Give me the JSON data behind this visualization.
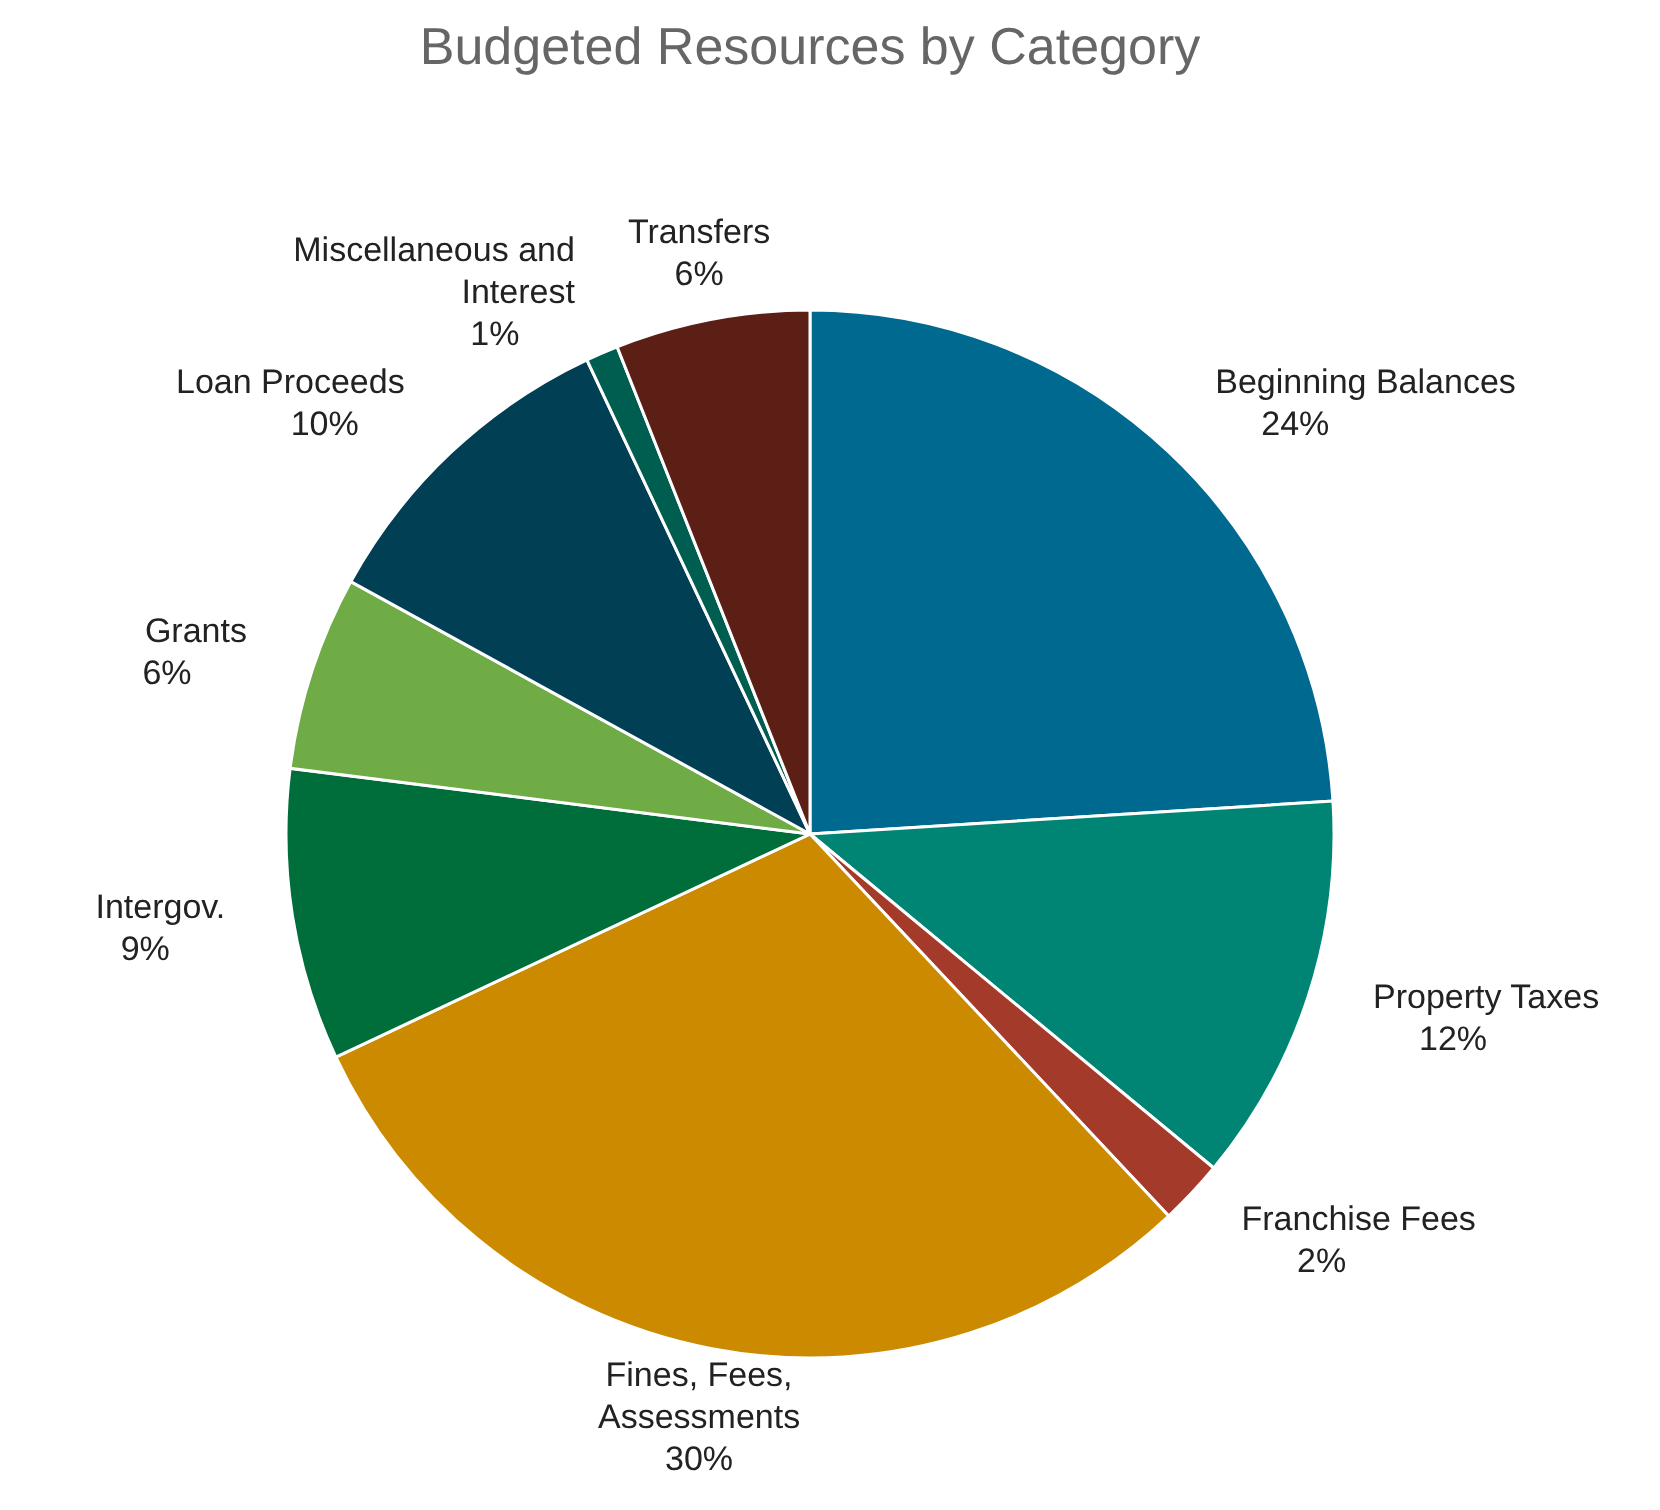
{
  "chart_data": {
    "type": "pie",
    "title": "Budgeted Resources by Category",
    "categories": [
      "Beginning Balances",
      "Property Taxes",
      "Franchise Fees",
      "Fines, Fees, Assessments",
      "Intergov.",
      "Grants",
      "Loan Proceeds",
      "Miscellaneous and Interest",
      "Transfers"
    ],
    "values": [
      24,
      12,
      2,
      30,
      9,
      6,
      10,
      1,
      6
    ],
    "colors": [
      "#00698f",
      "#008575",
      "#a33a2a",
      "#cc8a00",
      "#006e3a",
      "#6fac46",
      "#003f54",
      "#005e50",
      "#5c1f16"
    ],
    "value_labels": [
      "24%",
      "12%",
      "2%",
      "30%",
      "9%",
      "6%",
      "10%",
      "1%",
      "6%"
    ]
  }
}
